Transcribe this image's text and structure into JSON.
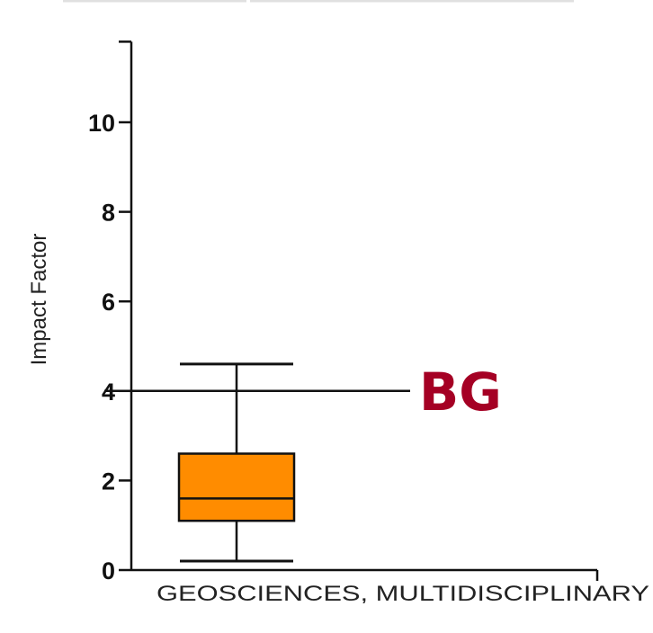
{
  "chart_data": {
    "type": "box",
    "ylabel": "Impact Factor",
    "xlabel": "",
    "ylim": [
      0,
      11.8
    ],
    "yticks": [
      0,
      2,
      4,
      6,
      8,
      10
    ],
    "ytick_labels": [
      "0",
      "2",
      "4",
      "6",
      "8",
      "10"
    ],
    "categories": [
      "GEOSCIENCES, MULTIDISCIPLINARY"
    ],
    "box": {
      "whisker_low": 0.2,
      "q1": 1.1,
      "median": 1.6,
      "q3": 2.6,
      "whisker_high": 4.6
    },
    "reference_line": {
      "label": "BG",
      "value": 4.0
    },
    "colors": {
      "box_fill": "#ff8c00",
      "marker_label": "#a50024",
      "axis": "#111111"
    }
  }
}
